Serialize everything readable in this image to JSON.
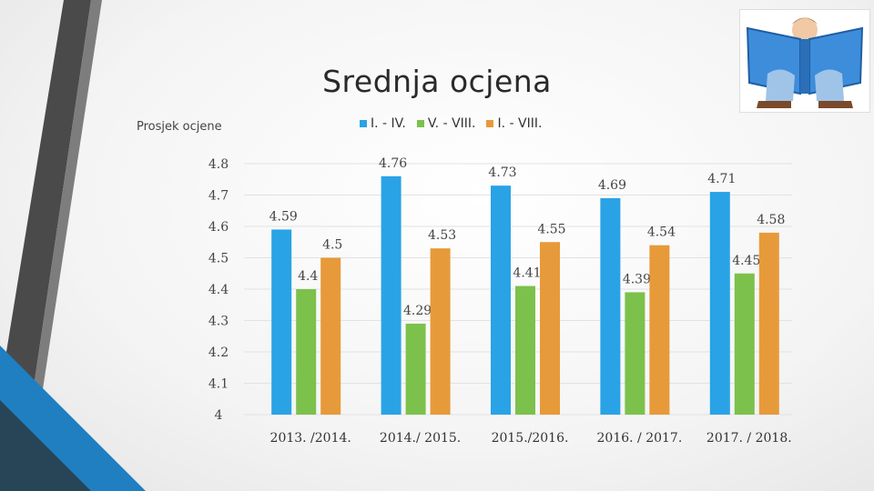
{
  "chart_data": {
    "type": "bar",
    "title": "Srednja ocjena",
    "ylabel": "Prosjek ocjene",
    "xlabel": "",
    "ylim": [
      4,
      4.8
    ],
    "yticks": [
      "4",
      "4.1",
      "4.2",
      "4.3",
      "4.4",
      "4.5",
      "4.6",
      "4.7",
      "4.8"
    ],
    "categories": [
      "2013. /2014.",
      "2014./ 2015.",
      "2015./2016.",
      "2016. / 2017.",
      "2017. / 2018."
    ],
    "series": [
      {
        "name": "I. - IV.",
        "color": "#29a3e6",
        "values": [
          4.59,
          4.76,
          4.73,
          4.69,
          4.71
        ],
        "labels": [
          "4.59",
          "4.76",
          "4.73",
          "4.69",
          "4.71"
        ]
      },
      {
        "name": "V. - VIII.",
        "color": "#7cc14b",
        "values": [
          4.4,
          4.29,
          4.41,
          4.39,
          4.45
        ],
        "labels": [
          "4.4",
          "4.29",
          "4.41",
          "4.39",
          "4.45"
        ]
      },
      {
        "name": "I. - VIII.",
        "color": "#e79a3a",
        "values": [
          4.5,
          4.53,
          4.55,
          4.54,
          4.58
        ],
        "labels": [
          "4.5",
          "4.53",
          "4.55",
          "4.54",
          "4.58"
        ]
      }
    ],
    "legend_position": "top"
  },
  "decor": {
    "picture_icon": "child-reading-book-icon"
  }
}
